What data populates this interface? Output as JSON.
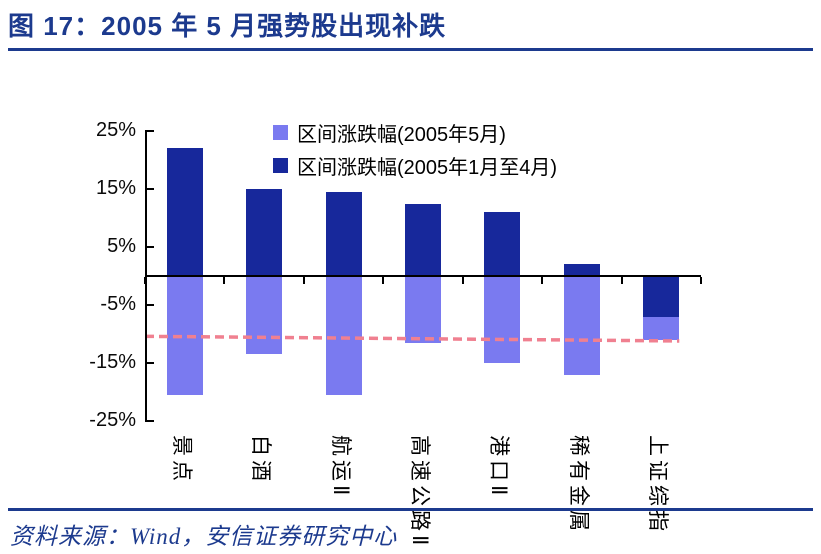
{
  "title": "图 17：2005 年 5 月强势股出现补跌",
  "source_note": "资料来源：Wind，安信证券研究中心",
  "colors": {
    "accent_blue": "#1c3a8e",
    "bar_light": "#7a7af0",
    "bar_dark": "#17289b",
    "reference_line": "#f08090",
    "axis": "#000000"
  },
  "chart_data": {
    "type": "bar",
    "stacked": true,
    "title": "2005 年 5 月强势股出现补跌",
    "categories": [
      "景点",
      "白酒",
      "航运Ⅱ",
      "高速公路Ⅱ",
      "港口Ⅱ",
      "稀有金属",
      "上证综指"
    ],
    "series": [
      {
        "name": "区间涨跌幅(2005年5月)",
        "color": "#7a7af0",
        "values": [
          -20.5,
          -13.5,
          -20.5,
          -11.5,
          -15,
          -17,
          -4
        ]
      },
      {
        "name": "区间涨跌幅(2005年1月至4月)",
        "color": "#17289b",
        "values": [
          22,
          15,
          14.5,
          12.5,
          11,
          2,
          -7
        ]
      }
    ],
    "ylim": [
      -25,
      25
    ],
    "ytick_values": [
      25,
      15,
      5,
      -5,
      -15,
      -25
    ],
    "ytick_labels": [
      "25%",
      "15%",
      "5%",
      "-5%",
      "-15%",
      "-25%"
    ],
    "grid": false,
    "legend_position": "top-center",
    "reference_line": {
      "style": "dashed",
      "color": "#f08090",
      "from_pct": -10.4,
      "to_pct": -11.2
    }
  }
}
